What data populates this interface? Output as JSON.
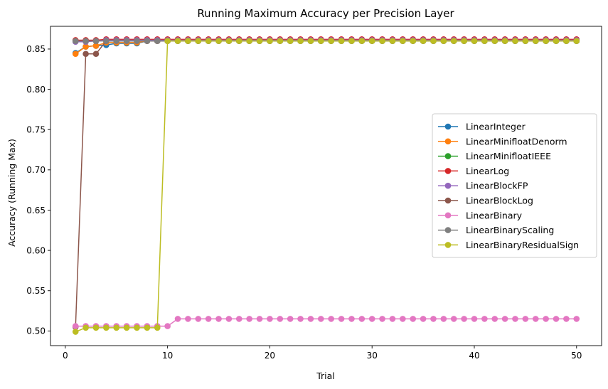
{
  "chart_data": {
    "type": "line",
    "title": "Running Maximum Accuracy per Precision Layer",
    "xlabel": "Trial",
    "ylabel": "Accuracy (Running Max)",
    "xlim": [
      -1.45,
      52.45
    ],
    "ylim": [
      0.4818,
      0.8782
    ],
    "xticks": [
      0,
      10,
      20,
      30,
      40,
      50
    ],
    "yticks": [
      0.5,
      0.55,
      0.6,
      0.65,
      0.7,
      0.75,
      0.8,
      0.85
    ],
    "ytick_labels": [
      "0.50",
      "0.55",
      "0.60",
      "0.65",
      "0.70",
      "0.75",
      "0.80",
      "0.85"
    ],
    "grid": false,
    "legend_position": "center-right",
    "marker": "circle",
    "x_start": 1,
    "x_end": 50,
    "series": [
      {
        "name": "LinearInteger",
        "color": "#1f77b4",
        "steps": [
          [
            1,
            0.845
          ],
          [
            2,
            0.853
          ],
          [
            3,
            0.854
          ],
          [
            4,
            0.855
          ],
          [
            5,
            0.857
          ],
          [
            8,
            0.86
          ],
          [
            11,
            0.86
          ]
        ]
      },
      {
        "name": "LinearMinifloatDenorm",
        "color": "#ff7f0e",
        "steps": [
          [
            1,
            0.844
          ],
          [
            2,
            0.853
          ],
          [
            3,
            0.854
          ],
          [
            4,
            0.858
          ],
          [
            8,
            0.86
          ],
          [
            11,
            0.861
          ]
        ]
      },
      {
        "name": "LinearMinifloatIEEE",
        "color": "#2ca02c",
        "steps": [
          [
            1,
            0.86
          ],
          [
            3,
            0.86
          ],
          [
            4,
            0.861
          ]
        ]
      },
      {
        "name": "LinearLog",
        "color": "#d62728",
        "steps": [
          [
            1,
            0.861
          ],
          [
            4,
            0.862
          ]
        ]
      },
      {
        "name": "LinearBlockFP",
        "color": "#9467bd",
        "steps": [
          [
            1,
            0.859
          ],
          [
            3,
            0.86
          ],
          [
            4,
            0.861
          ]
        ]
      },
      {
        "name": "LinearBlockLog",
        "color": "#8c564b",
        "steps": [
          [
            1,
            0.505
          ],
          [
            2,
            0.844
          ],
          [
            4,
            0.86
          ]
        ]
      },
      {
        "name": "LinearBinary",
        "color": "#e377c2",
        "steps": [
          [
            1,
            0.506
          ],
          [
            11,
            0.515
          ]
        ]
      },
      {
        "name": "LinearBinaryScaling",
        "color": "#7f7f7f",
        "steps": [
          [
            1,
            0.86
          ]
        ]
      },
      {
        "name": "LinearBinaryResidualSign",
        "color": "#bcbd22",
        "steps": [
          [
            1,
            0.499
          ],
          [
            2,
            0.504
          ],
          [
            10,
            0.86
          ]
        ]
      }
    ]
  }
}
